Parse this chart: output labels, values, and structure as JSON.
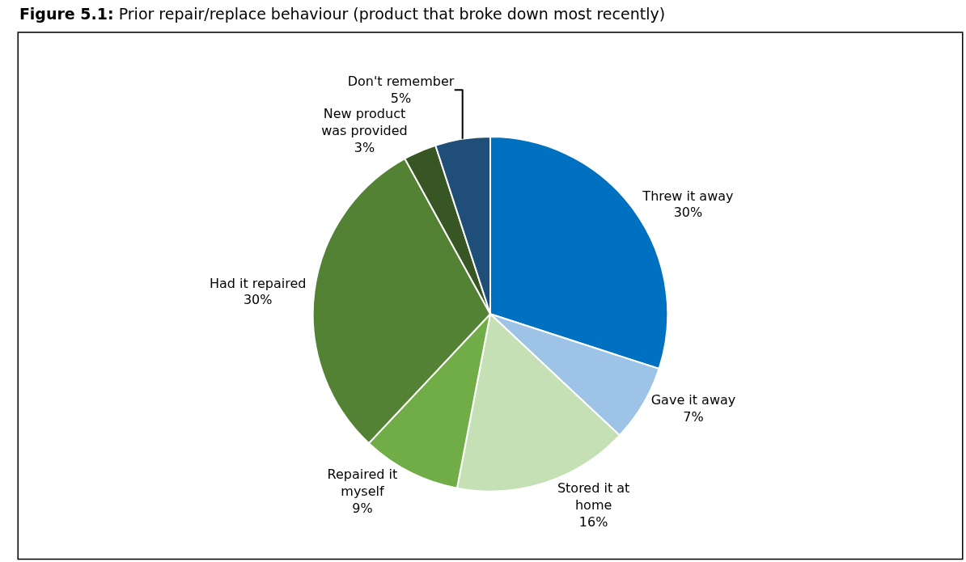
{
  "chart_data": {
    "type": "pie",
    "title": "Figure 5.1: Prior repair/replace behaviour (product that broke down most recently)",
    "categories": [
      "Threw it away",
      "Gave it away",
      "Stored it at\nhome",
      "Repaired it\nmyself",
      "Had it repaired",
      "New product\nwas provided",
      "Don't remember"
    ],
    "values": [
      30,
      7,
      16,
      9,
      30,
      3,
      5
    ],
    "colors": [
      "#0070c0",
      "#9dc3e6",
      "#c5e0b4",
      "#70ad47",
      "#548235",
      "#375623",
      "#1f4e79"
    ],
    "value_labels": [
      "30%",
      "7%",
      "16%",
      "9%",
      "30%",
      "3%",
      "5%"
    ],
    "legend": false
  }
}
